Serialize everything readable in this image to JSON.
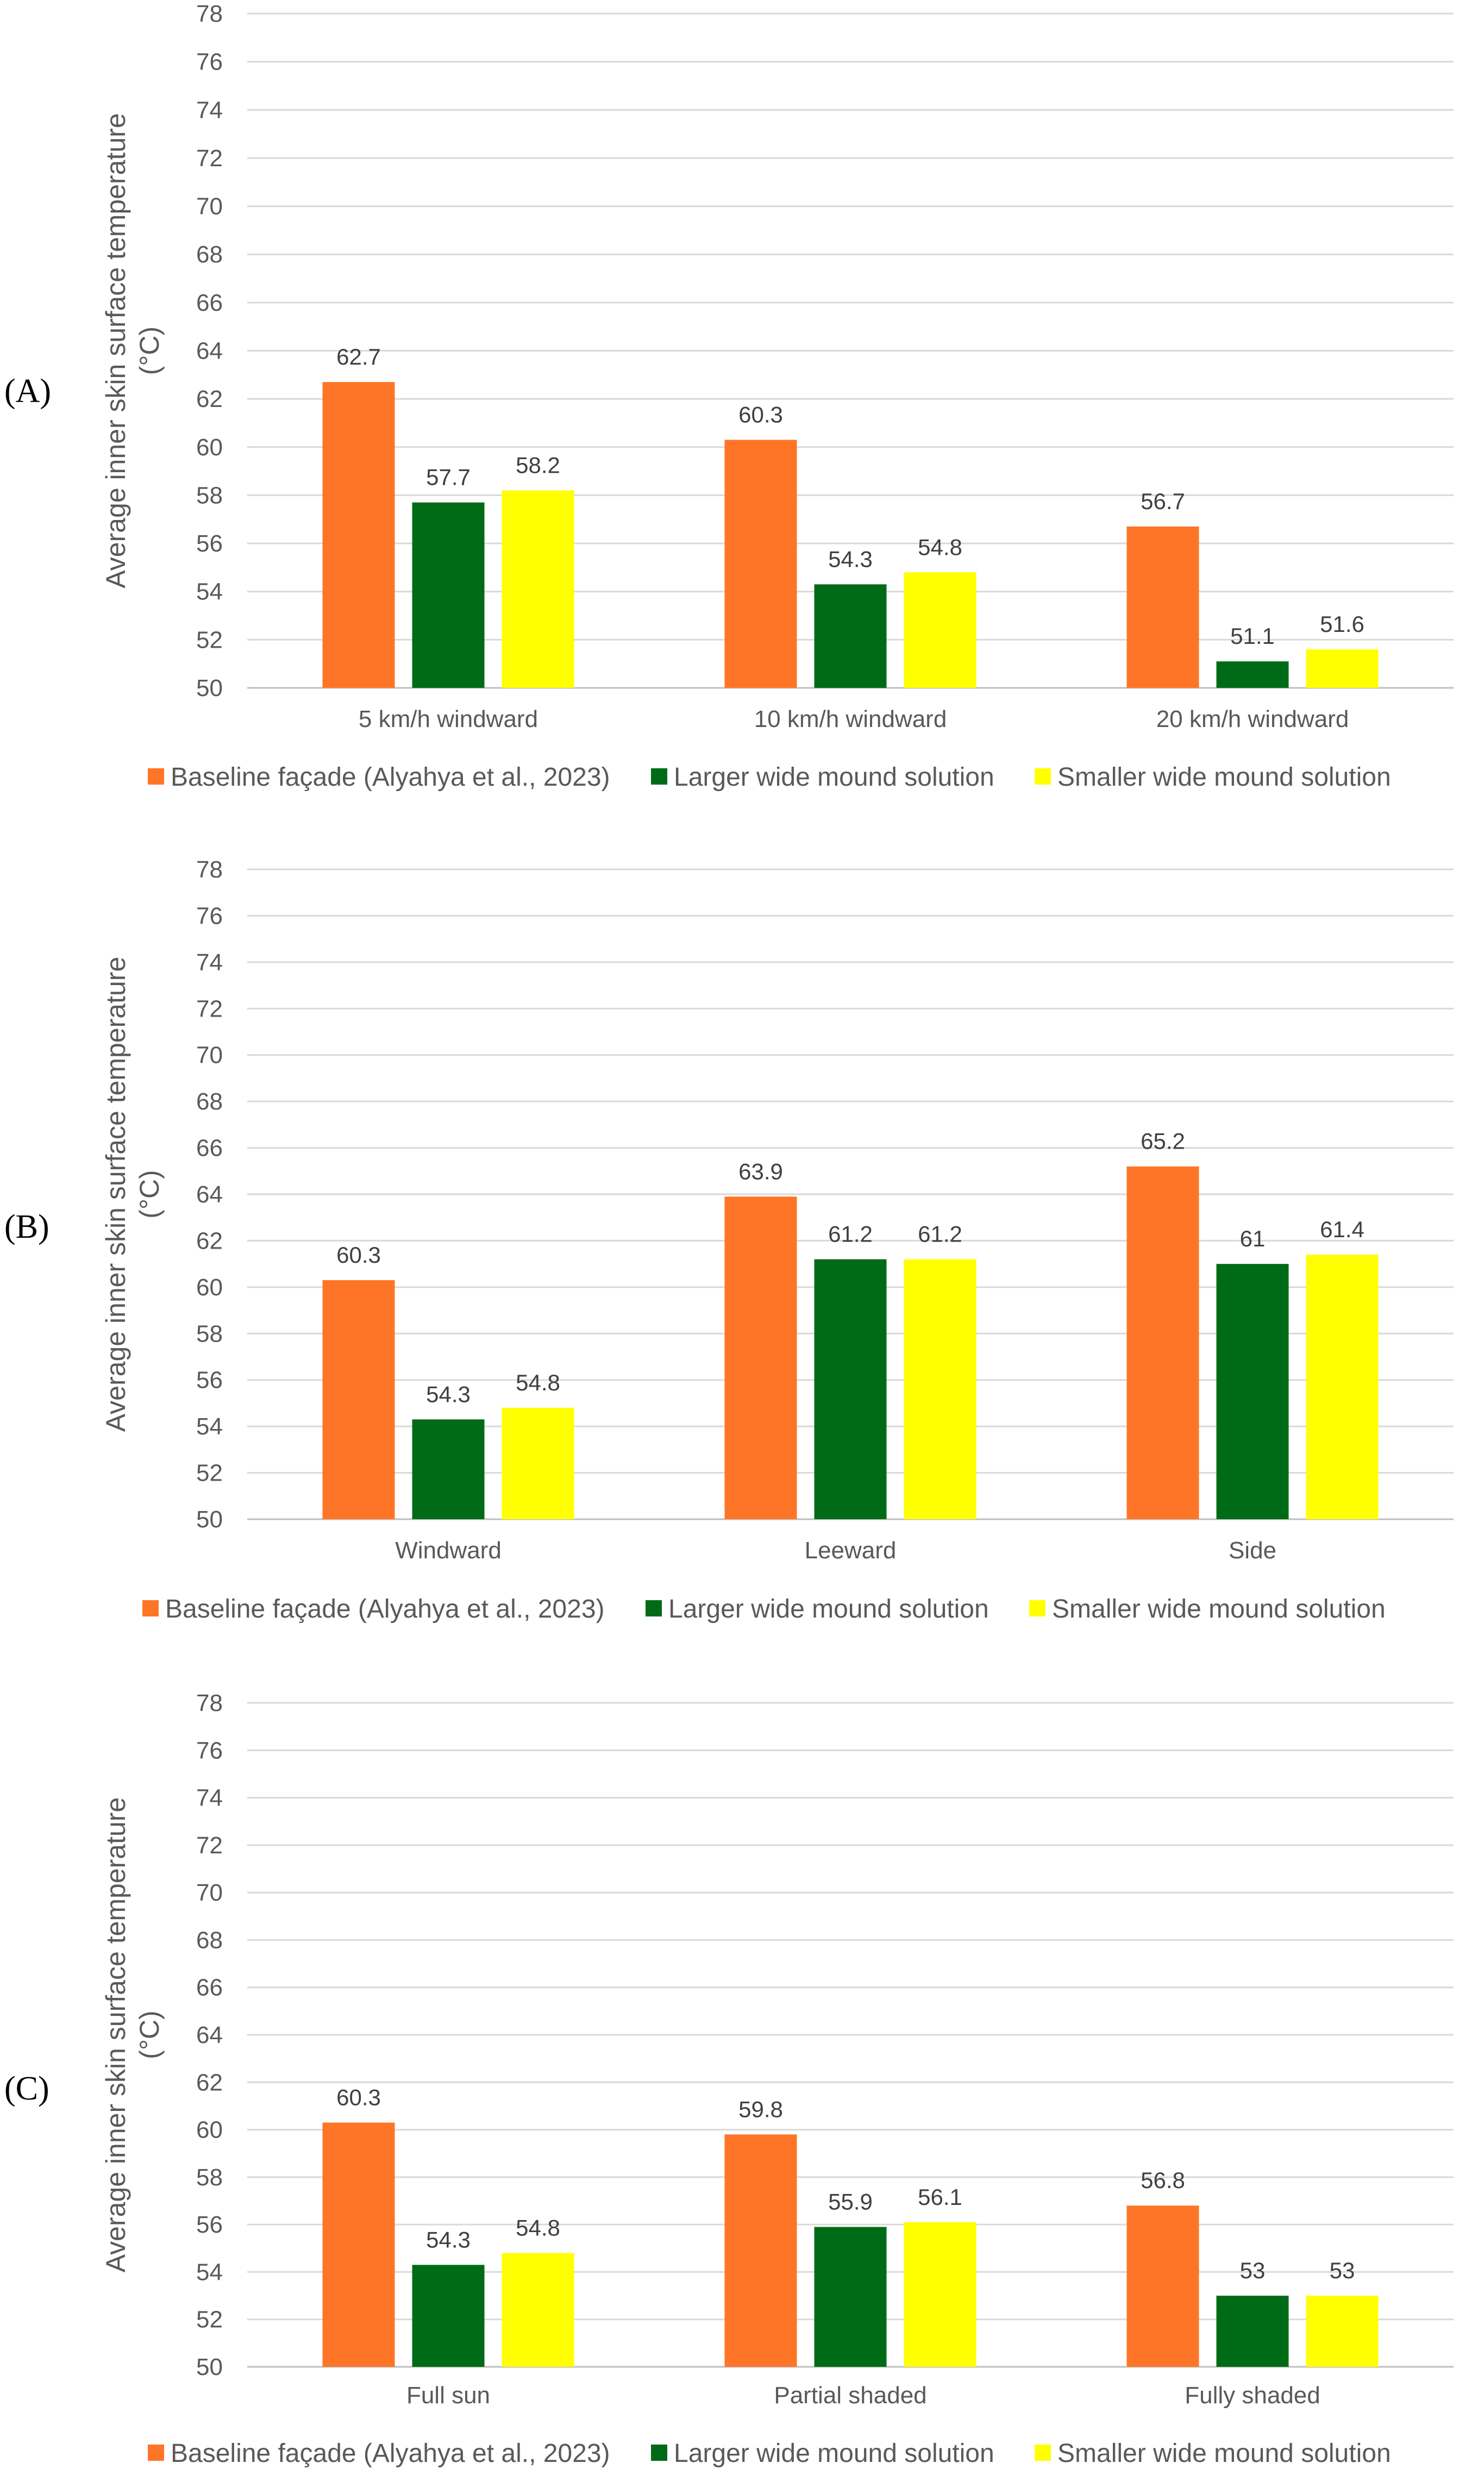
{
  "chart_data": [
    {
      "type": "bar",
      "panel_label": "(A)",
      "ylabel": "Average inner skin surface temperature (°C)",
      "ylabel_lines": [
        "Average inner skin surface temperature",
        "(°C)"
      ],
      "ylim": [
        50,
        78
      ],
      "yticks": [
        50,
        52,
        54,
        56,
        58,
        60,
        62,
        64,
        66,
        68,
        70,
        72,
        74,
        76,
        78
      ],
      "grid": true,
      "legend_position": "bottom",
      "categories": [
        "5 km/h windward",
        "10 km/h windward",
        "20 km/h windward"
      ],
      "series": [
        {
          "name": "Baseline façade (Alyahya et al., 2023)",
          "color": "#ff7527",
          "values": [
            62.7,
            60.3,
            56.7
          ]
        },
        {
          "name": "Larger wide mound solution",
          "color": "#006b17",
          "values": [
            57.7,
            54.3,
            51.1
          ]
        },
        {
          "name": "Smaller wide mound solution",
          "color": "#ffff00",
          "values": [
            58.2,
            54.8,
            51.6
          ]
        }
      ]
    },
    {
      "type": "bar",
      "panel_label": "(B)",
      "ylabel": "Average inner skin surface temperature (°C)",
      "ylabel_lines": [
        "Average inner skin surface temperature",
        "(°C)"
      ],
      "ylim": [
        50,
        78
      ],
      "yticks": [
        50,
        52,
        54,
        56,
        58,
        60,
        62,
        64,
        66,
        68,
        70,
        72,
        74,
        76,
        78
      ],
      "grid": true,
      "legend_position": "bottom",
      "categories": [
        "Windward",
        "Leeward",
        "Side"
      ],
      "series": [
        {
          "name": "Baseline façade (Alyahya et al., 2023)",
          "color": "#ff7527",
          "values": [
            60.3,
            63.9,
            65.2
          ]
        },
        {
          "name": "Larger wide mound solution",
          "color": "#006b17",
          "values": [
            54.3,
            61.2,
            61
          ]
        },
        {
          "name": "Smaller wide mound solution",
          "color": "#ffff00",
          "values": [
            54.8,
            61.2,
            61.4
          ]
        }
      ]
    },
    {
      "type": "bar",
      "panel_label": "(C)",
      "ylabel": "Average inner skin surface temperature (°C)",
      "ylabel_lines": [
        "Average inner skin surface temperature",
        "(°C)"
      ],
      "ylim": [
        50,
        78
      ],
      "yticks": [
        50,
        52,
        54,
        56,
        58,
        60,
        62,
        64,
        66,
        68,
        70,
        72,
        74,
        76,
        78
      ],
      "grid": true,
      "legend_position": "bottom",
      "categories": [
        "Full sun",
        "Partial shaded",
        "Fully shaded"
      ],
      "series": [
        {
          "name": "Baseline façade (Alyahya et al., 2023)",
          "color": "#ff7527",
          "values": [
            60.3,
            59.8,
            56.8
          ]
        },
        {
          "name": "Larger wide mound solution",
          "color": "#006b17",
          "values": [
            54.3,
            55.9,
            53
          ]
        },
        {
          "name": "Smaller wide mound solution",
          "color": "#ffff00",
          "values": [
            54.8,
            56.1,
            53
          ]
        }
      ]
    }
  ]
}
